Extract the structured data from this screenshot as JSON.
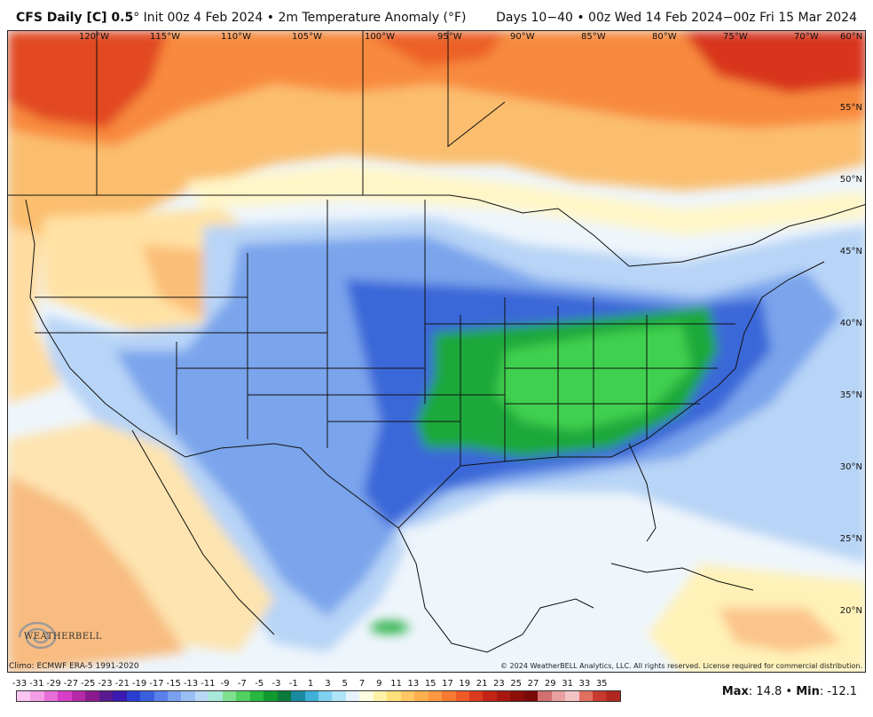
{
  "header": {
    "model_prefix": "CFS Daily [C] 0.5",
    "model_suffix": "° Init 00z 4 Feb 2024 • 2m Temperature Anomaly (°F)",
    "valid_range": "Days 10−40 • 00z Wed 14 Feb 2024−00z Fri 15 Mar 2024"
  },
  "map": {
    "longitude_labels": [
      "120°W",
      "115°W",
      "110°W",
      "105°W",
      "100°W",
      "95°W",
      "90°W",
      "85°W",
      "80°W",
      "75°W",
      "70°W",
      "60°N"
    ],
    "latitude_labels": [
      "55°N",
      "50°N",
      "45°N",
      "40°N",
      "35°N",
      "30°N",
      "25°N",
      "20°N"
    ],
    "logo_text": "WEATHERBELL",
    "logo_icon": "swirl-logo-icon"
  },
  "footer": {
    "climo": "Climo: ECMWF ERA-5 1991-2020",
    "copyright": "© 2024 WeatherBELL Analytics, LLC. All rights reserved. License required for commercial distribution."
  },
  "legend": {
    "tick_labels": [
      "-33",
      "-31",
      "-29",
      "-27",
      "-25",
      "-23",
      "-21",
      "-19",
      "-17",
      "-15",
      "-13",
      "-11",
      "-9",
      "-7",
      "-5",
      "-3",
      "-1",
      "1",
      "3",
      "5",
      "7",
      "9",
      "11",
      "13",
      "15",
      "17",
      "19",
      "21",
      "23",
      "25",
      "27",
      "29",
      "31",
      "33",
      "35"
    ],
    "colors": [
      "#f9c5f0",
      "#f39ee6",
      "#e86fd9",
      "#d83fc8",
      "#b52aa8",
      "#8c1a8f",
      "#5a1a8f",
      "#3a1ab0",
      "#2a3fd0",
      "#3a60e0",
      "#5a80ea",
      "#7aa0f0",
      "#9abff4",
      "#b8d8f6",
      "#a8e8d8",
      "#80e090",
      "#50d060",
      "#28b840",
      "#109a30",
      "#0a7a3a",
      "#1a8aa0",
      "#40b0d8",
      "#80d0f0",
      "#b0e4f8",
      "#e6f2fb",
      "#fffde0",
      "#fff2a8",
      "#ffe07a",
      "#ffc864",
      "#ffb04e",
      "#ff9840",
      "#f87a32",
      "#ee5a28",
      "#dc3a1e",
      "#c22416",
      "#a81810",
      "#8e0e0a",
      "#7a0a08",
      "#d07070",
      "#e8a0a0",
      "#f4c4c4",
      "#e07060",
      "#c83a30",
      "#b02820"
    ],
    "max_label": "Max",
    "max_value": ": 14.8 • ",
    "min_label": "Min",
    "min_value": ": -12.1"
  }
}
